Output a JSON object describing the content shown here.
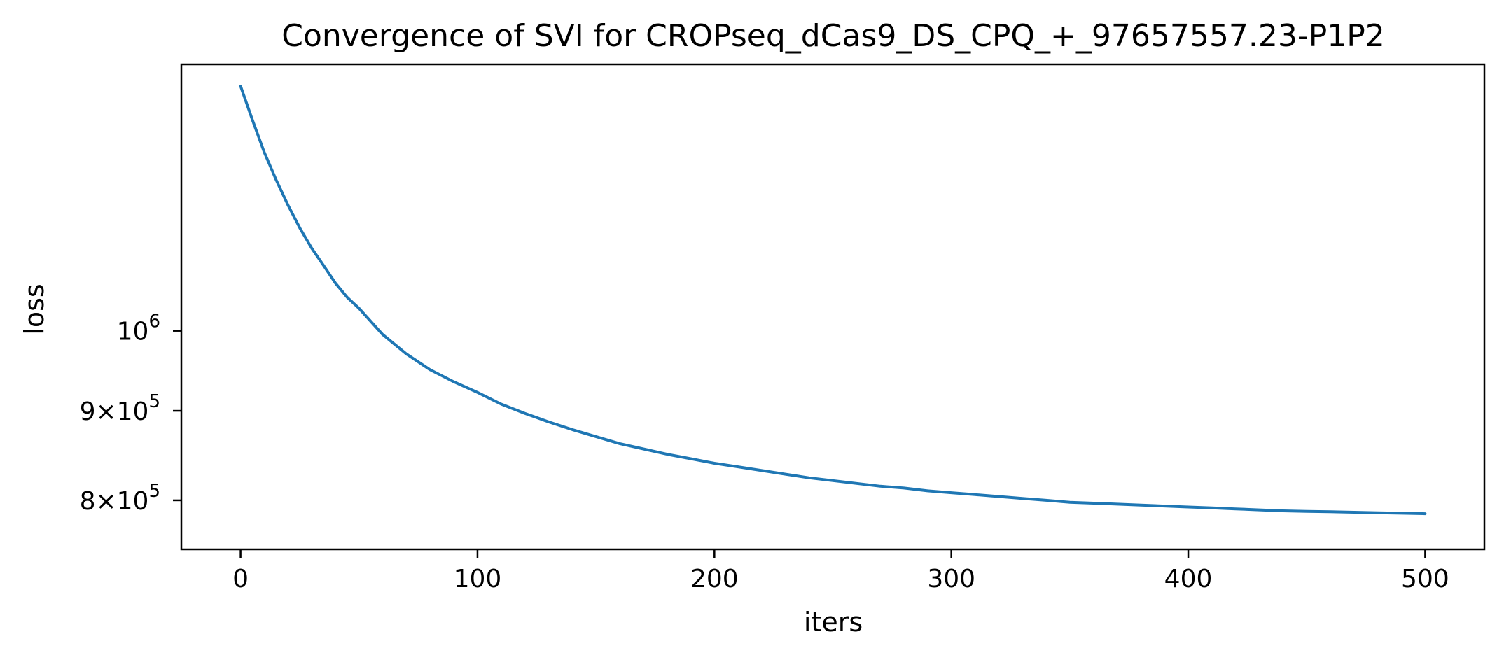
{
  "chart_data": {
    "type": "line",
    "title": "Convergence of SVI for CROPseq_dCas9_DS_CPQ_+_97657557.23-P1P2",
    "xlabel": "iters",
    "ylabel": "loss",
    "yscale": "log",
    "xlim": [
      -25,
      525
    ],
    "ylim": [
      750000,
      1420000
    ],
    "grid": false,
    "x_ticks": [
      {
        "value": 0,
        "label": "0"
      },
      {
        "value": 100,
        "label": "100"
      },
      {
        "value": 200,
        "label": "200"
      },
      {
        "value": 300,
        "label": "300"
      },
      {
        "value": 400,
        "label": "400"
      },
      {
        "value": 500,
        "label": "500"
      }
    ],
    "y_ticks": [
      {
        "value": 800000,
        "mant": "8",
        "times": "×",
        "base": "10",
        "exp": "5"
      },
      {
        "value": 900000,
        "mant": "9",
        "times": "×",
        "base": "10",
        "exp": "5"
      },
      {
        "value": 1000000,
        "mant": "",
        "times": "",
        "base": "10",
        "exp": "6"
      }
    ],
    "color": "#1f77b4",
    "series": [
      {
        "x": [
          0,
          5,
          10,
          15,
          20,
          25,
          30,
          35,
          40,
          45,
          50,
          60,
          70,
          80,
          90,
          100,
          110,
          120,
          130,
          140,
          150,
          160,
          170,
          180,
          190,
          200,
          210,
          220,
          230,
          240,
          250,
          260,
          270,
          280,
          290,
          300,
          310,
          320,
          330,
          340,
          350,
          360,
          370,
          380,
          390,
          400,
          410,
          420,
          430,
          440,
          450,
          460,
          470,
          480,
          490,
          500
        ],
        "y": [
          1380000,
          1320000,
          1265000,
          1220000,
          1180000,
          1145000,
          1115000,
          1090000,
          1065000,
          1045000,
          1030000,
          995000,
          970000,
          950000,
          935000,
          922000,
          908000,
          897000,
          887000,
          878000,
          870000,
          862000,
          856000,
          850000,
          845000,
          840000,
          836000,
          832000,
          828000,
          824000,
          821000,
          818000,
          815000,
          813000,
          810000,
          808000,
          806000,
          804000,
          802000,
          800000,
          798000,
          797000,
          796000,
          795000,
          794000,
          793000,
          792000,
          791000,
          790000,
          789000,
          788500,
          788000,
          787500,
          787000,
          786500,
          786000
        ]
      }
    ]
  }
}
